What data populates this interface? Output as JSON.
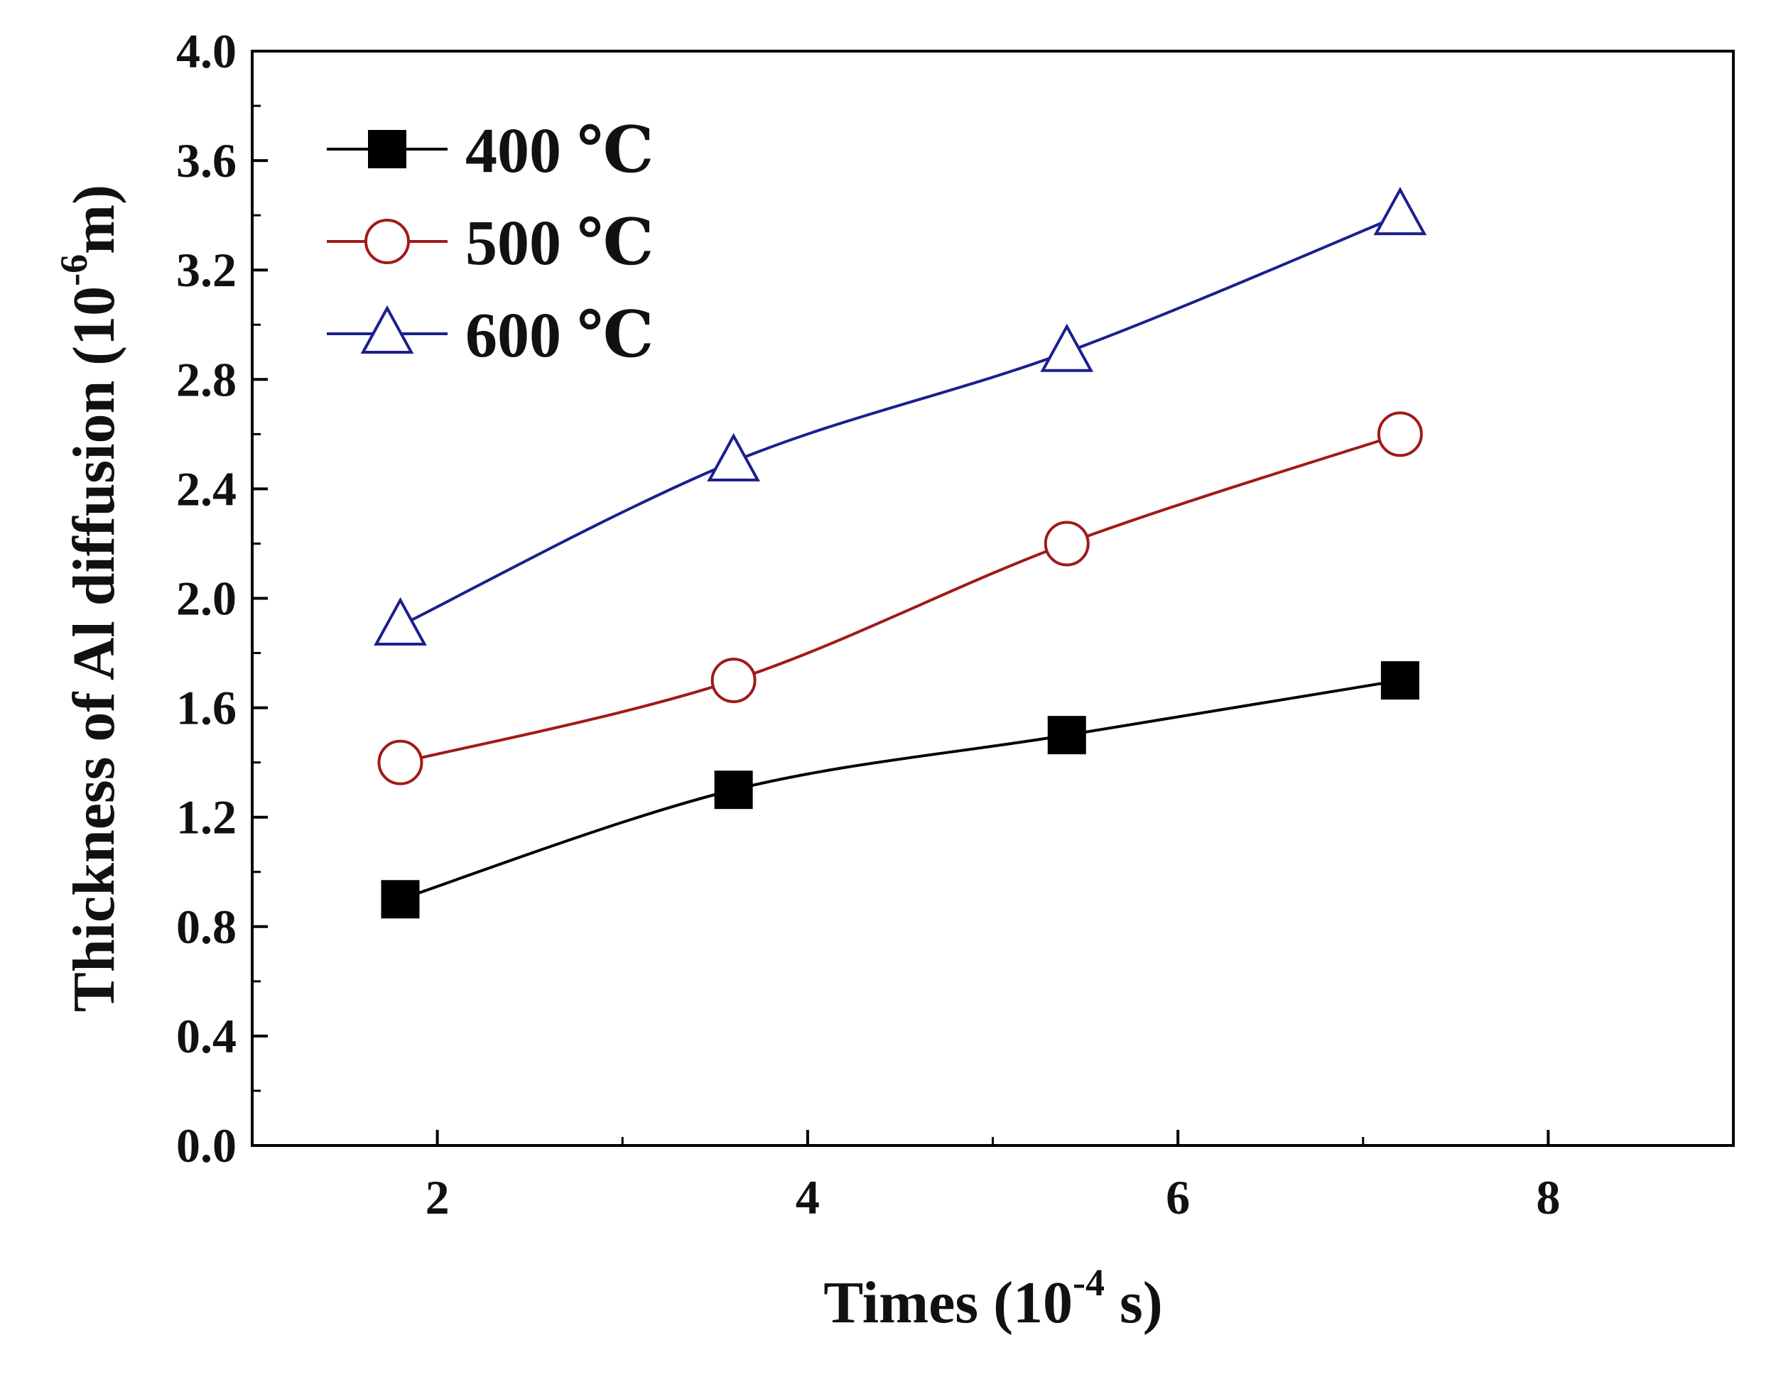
{
  "chart_data": {
    "type": "line",
    "title": "",
    "xlabel": "Times (10",
    "xlabel_exp": "-4",
    "xlabel_tail": " s)",
    "ylabel": "Thickness of Al diffusion (10",
    "ylabel_exp": "-6",
    "ylabel_tail": "m)",
    "xlim": [
      1,
      9
    ],
    "ylim": [
      0.0,
      4.0
    ],
    "xticks": [
      2,
      4,
      6,
      8
    ],
    "xtick_labels": [
      "2",
      "4",
      "6",
      "8"
    ],
    "yticks": [
      0.0,
      0.4,
      0.8,
      1.2,
      1.6,
      2.0,
      2.4,
      2.8,
      3.2,
      3.6,
      4.0
    ],
    "ytick_labels": [
      "0.0",
      "0.4",
      "0.8",
      "1.2",
      "1.6",
      "2.0",
      "2.4",
      "2.8",
      "3.2",
      "3.6",
      "4.0"
    ],
    "grid": false,
    "legend_position": "top-left",
    "x": [
      1.8,
      3.6,
      5.4,
      7.2
    ],
    "series": [
      {
        "name": "400 ℃",
        "marker": "filled-square",
        "color": "#000000",
        "values": [
          0.9,
          1.3,
          1.5,
          1.7
        ]
      },
      {
        "name": "500 ℃",
        "marker": "open-circle",
        "color": "#a01a1a",
        "values": [
          1.4,
          1.7,
          2.2,
          2.6
        ]
      },
      {
        "name": "600 ℃",
        "marker": "open-triangle",
        "color": "#1a1f8f",
        "values": [
          1.9,
          2.5,
          2.9,
          3.4
        ]
      }
    ]
  }
}
